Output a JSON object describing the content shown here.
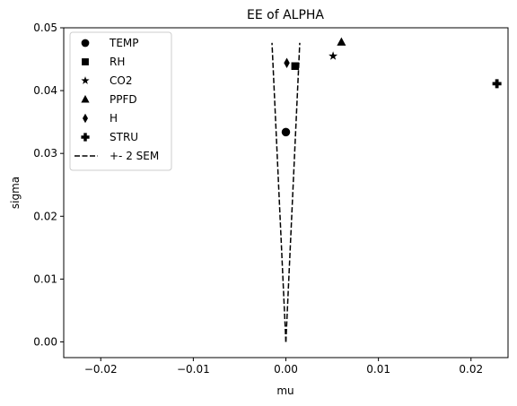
{
  "chart_data": {
    "type": "scatter",
    "title": "EE of ALPHA",
    "xlabel": "mu",
    "ylabel": "sigma",
    "xlim": [
      -0.024,
      0.024
    ],
    "ylim": [
      -0.0025,
      0.05
    ],
    "xticks": [
      -0.02,
      -0.01,
      0.0,
      0.01,
      0.02
    ],
    "xtick_labels": [
      "−0.02",
      "−0.01",
      "0.00",
      "0.01",
      "0.02"
    ],
    "yticks": [
      0.0,
      0.01,
      0.02,
      0.03,
      0.04,
      0.05
    ],
    "ytick_labels": [
      "0.00",
      "0.01",
      "0.02",
      "0.03",
      "0.04",
      "0.05"
    ],
    "grid": false,
    "legend_position": "top-left",
    "series": [
      {
        "name": "TEMP",
        "marker": "circle",
        "x": 0.0,
        "y": 0.0334
      },
      {
        "name": "RH",
        "marker": "square",
        "x": 0.001,
        "y": 0.0439
      },
      {
        "name": "CO2",
        "marker": "star",
        "x": 0.0051,
        "y": 0.0455
      },
      {
        "name": "PPFD",
        "marker": "triangle",
        "x": 0.006,
        "y": 0.0477
      },
      {
        "name": "H",
        "marker": "diamond",
        "x": 0.0001,
        "y": 0.0444
      },
      {
        "name": "STRU",
        "marker": "plus",
        "x": 0.0228,
        "y": 0.0411
      }
    ],
    "sem_band": {
      "name": "+- 2 SEM",
      "style": "dashed",
      "apex": [
        0.0,
        0.0
      ],
      "left_end": [
        -0.0015,
        0.0476
      ],
      "right_end": [
        0.0015,
        0.0476
      ]
    },
    "color": "#000000"
  }
}
